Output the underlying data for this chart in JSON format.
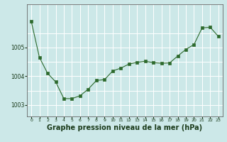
{
  "x": [
    0,
    1,
    2,
    3,
    4,
    5,
    6,
    7,
    8,
    9,
    10,
    11,
    12,
    13,
    14,
    15,
    16,
    17,
    18,
    19,
    20,
    21,
    22,
    23
  ],
  "y": [
    1005.9,
    1004.65,
    1004.1,
    1003.8,
    1003.22,
    1003.22,
    1003.32,
    1003.55,
    1003.85,
    1003.88,
    1004.18,
    1004.28,
    1004.42,
    1004.48,
    1004.52,
    1004.47,
    1004.45,
    1004.46,
    1004.7,
    1004.93,
    1005.1,
    1005.68,
    1005.7,
    1005.38
  ],
  "line_color": "#2d6a2d",
  "marker_color": "#2d6a2d",
  "bg_color": "#cce8e8",
  "grid_color": "#ffffff",
  "ylabel_ticks": [
    1003,
    1004,
    1005
  ],
  "ylim": [
    1002.6,
    1006.5
  ],
  "xlim": [
    -0.5,
    23.5
  ],
  "xlabel": "Graphe pression niveau de la mer (hPa)",
  "xlabel_fontsize": 7.0,
  "xtick_labels": [
    "0",
    "1",
    "2",
    "3",
    "4",
    "5",
    "6",
    "7",
    "8",
    "9",
    "10",
    "11",
    "12",
    "13",
    "14",
    "15",
    "16",
    "17",
    "18",
    "19",
    "20",
    "21",
    "22",
    "23"
  ]
}
